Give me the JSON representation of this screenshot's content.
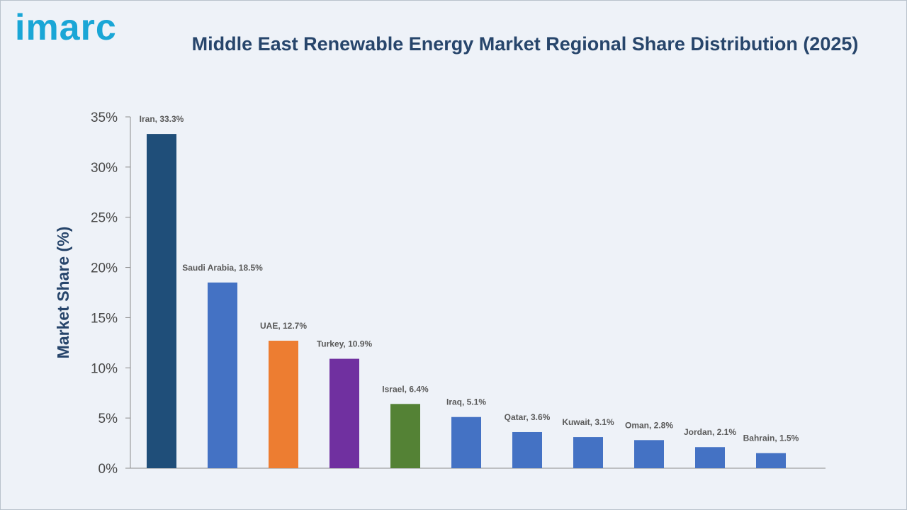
{
  "header": {
    "logo": "imarc",
    "title": "Middle East Renewable Energy Market Regional Share Distribution (2025)"
  },
  "chart_data": {
    "type": "bar",
    "title": "Middle East Renewable Energy Market Regional Share Distribution (2025)",
    "xlabel": "",
    "ylabel": "Market Share (%)",
    "ylim": [
      0,
      35
    ],
    "y_ticks": [
      "0%",
      "5%",
      "10%",
      "15%",
      "20%",
      "25%",
      "30%",
      "35%"
    ],
    "y_tick_values": [
      0,
      5,
      10,
      15,
      20,
      25,
      30,
      35
    ],
    "categories": [
      "Iran",
      "Saudi Arabia",
      "UAE",
      "Turkey",
      "Israel",
      "Iraq",
      "Qatar",
      "Kuwait",
      "Oman",
      "Jordan",
      "Bahrain"
    ],
    "values": [
      33.3,
      18.5,
      12.7,
      10.9,
      6.4,
      5.1,
      3.6,
      3.1,
      2.8,
      2.1,
      1.5
    ],
    "data_labels": [
      "Iran, 33.3%",
      "Saudi Arabia, 18.5%",
      "UAE, 12.7%",
      "Turkey, 10.9%",
      "Israel, 6.4%",
      "Iraq, 5.1%",
      "Qatar, 3.6%",
      "Kuwait, 3.1%",
      "Oman, 2.8%",
      "Jordan, 2.1%",
      "Bahrain, 1.5%"
    ],
    "colors": [
      "#1f4e79",
      "#4472c4",
      "#ed7d31",
      "#7030a0",
      "#548235",
      "#4472c4",
      "#4472c4",
      "#4472c4",
      "#4472c4",
      "#4472c4",
      "#4472c4"
    ],
    "grid": false,
    "legend": "none"
  }
}
